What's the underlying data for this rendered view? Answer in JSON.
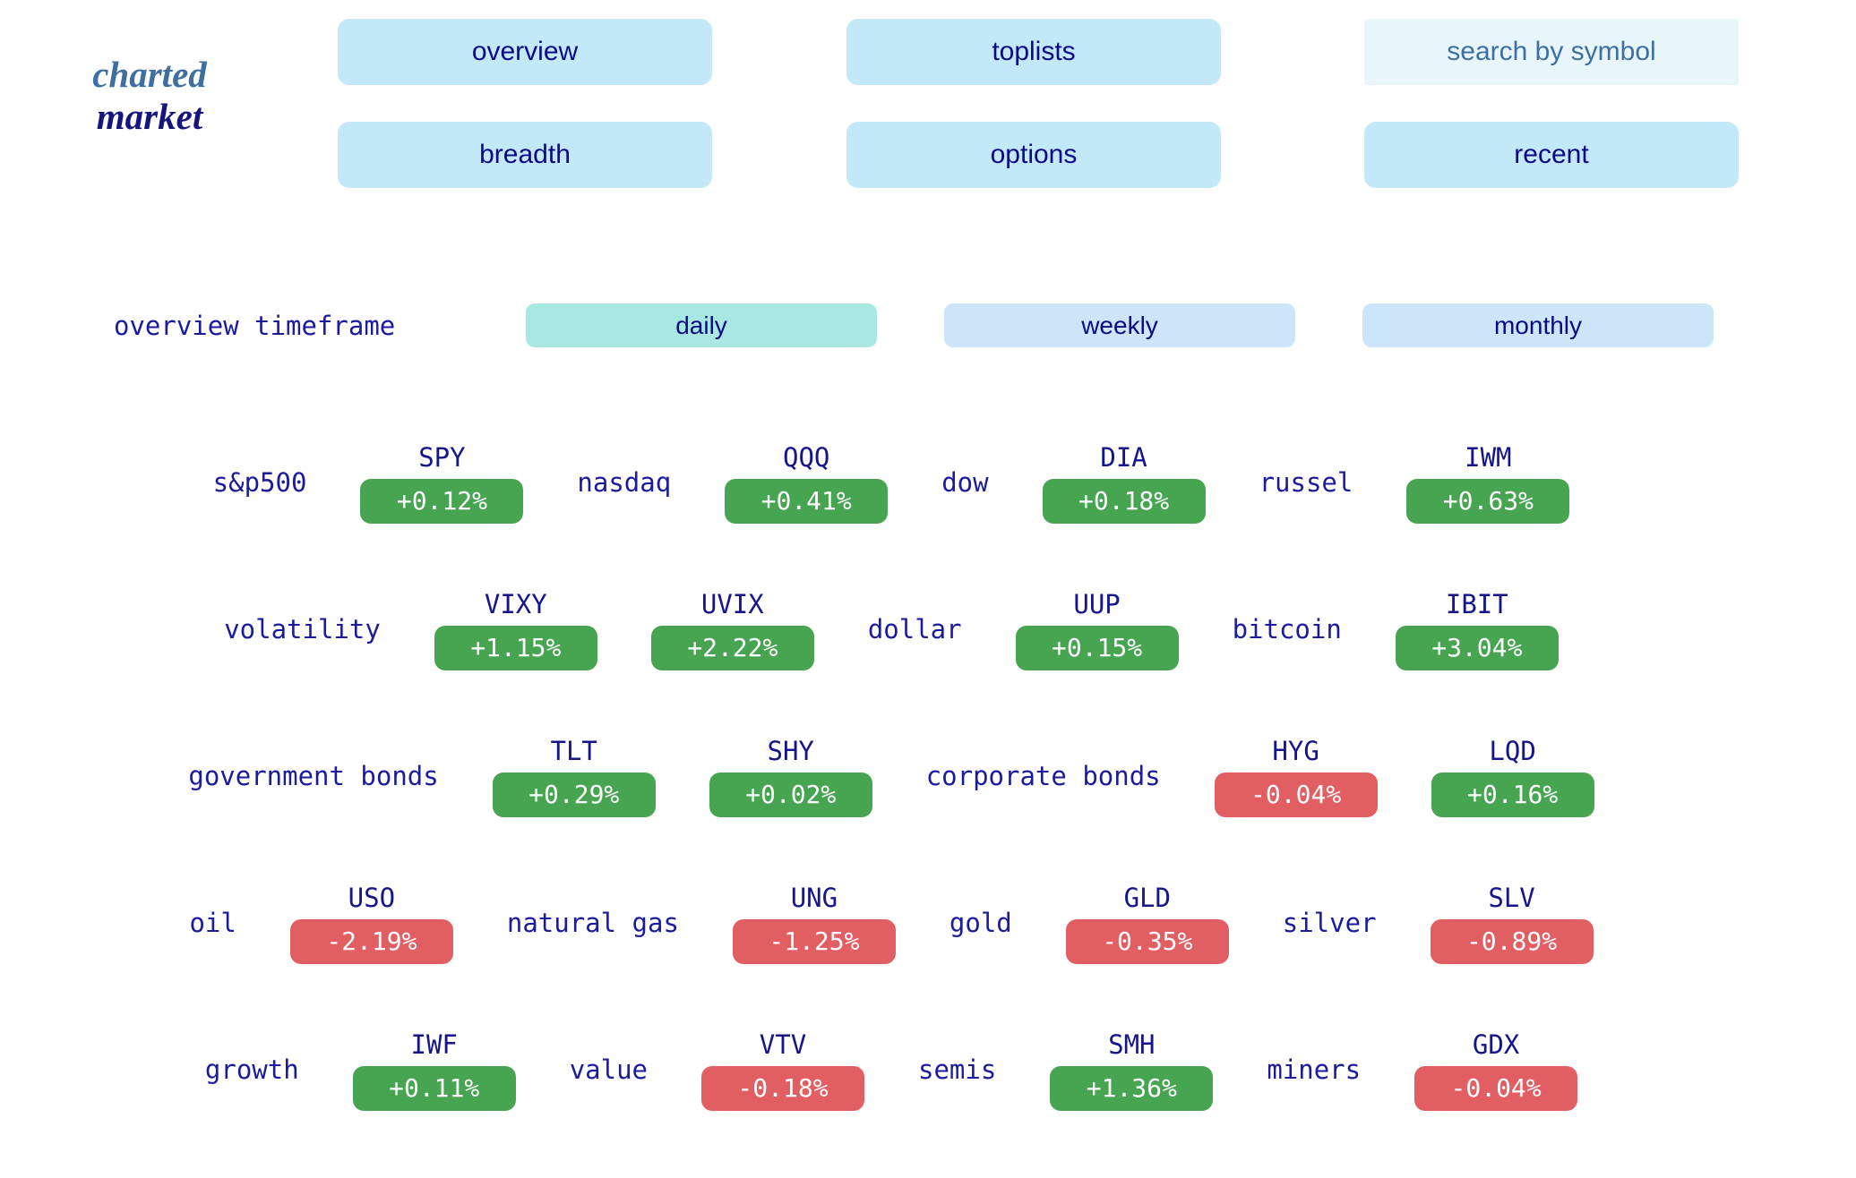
{
  "brand": {
    "line1": "charted",
    "line2": "market"
  },
  "nav": {
    "row1": [
      {
        "label": "overview"
      },
      {
        "label": "toplists"
      }
    ],
    "search": {
      "placeholder": "search by symbol"
    },
    "row2": [
      {
        "label": "breadth"
      },
      {
        "label": "options"
      },
      {
        "label": "recent"
      }
    ]
  },
  "timeframe": {
    "label": "overview timeframe",
    "options": [
      {
        "label": "daily",
        "selected": true
      },
      {
        "label": "weekly",
        "selected": false
      },
      {
        "label": "monthly",
        "selected": false
      }
    ]
  },
  "market": {
    "rows": [
      {
        "items": [
          {
            "type": "label",
            "text": "s&p500"
          },
          {
            "type": "ticker",
            "symbol": "SPY",
            "change": "+0.12%",
            "direction": "up"
          },
          {
            "type": "label",
            "text": "nasdaq"
          },
          {
            "type": "ticker",
            "symbol": "QQQ",
            "change": "+0.41%",
            "direction": "up"
          },
          {
            "type": "label",
            "text": "dow"
          },
          {
            "type": "ticker",
            "symbol": "DIA",
            "change": "+0.18%",
            "direction": "up"
          },
          {
            "type": "label",
            "text": "russel"
          },
          {
            "type": "ticker",
            "symbol": "IWM",
            "change": "+0.63%",
            "direction": "up"
          }
        ]
      },
      {
        "items": [
          {
            "type": "label",
            "text": "volatility"
          },
          {
            "type": "ticker",
            "symbol": "VIXY",
            "change": "+1.15%",
            "direction": "up"
          },
          {
            "type": "ticker",
            "symbol": "UVIX",
            "change": "+2.22%",
            "direction": "up"
          },
          {
            "type": "label",
            "text": "dollar"
          },
          {
            "type": "ticker",
            "symbol": "UUP",
            "change": "+0.15%",
            "direction": "up"
          },
          {
            "type": "label",
            "text": "bitcoin"
          },
          {
            "type": "ticker",
            "symbol": "IBIT",
            "change": "+3.04%",
            "direction": "up"
          }
        ]
      },
      {
        "items": [
          {
            "type": "label",
            "text": "government bonds"
          },
          {
            "type": "ticker",
            "symbol": "TLT",
            "change": "+0.29%",
            "direction": "up"
          },
          {
            "type": "ticker",
            "symbol": "SHY",
            "change": "+0.02%",
            "direction": "up"
          },
          {
            "type": "label",
            "text": "corporate bonds"
          },
          {
            "type": "ticker",
            "symbol": "HYG",
            "change": "-0.04%",
            "direction": "down"
          },
          {
            "type": "ticker",
            "symbol": "LQD",
            "change": "+0.16%",
            "direction": "up"
          }
        ]
      },
      {
        "items": [
          {
            "type": "label",
            "text": "oil"
          },
          {
            "type": "ticker",
            "symbol": "USO",
            "change": "-2.19%",
            "direction": "down"
          },
          {
            "type": "label",
            "text": "natural gas"
          },
          {
            "type": "ticker",
            "symbol": "UNG",
            "change": "-1.25%",
            "direction": "down"
          },
          {
            "type": "label",
            "text": "gold"
          },
          {
            "type": "ticker",
            "symbol": "GLD",
            "change": "-0.35%",
            "direction": "down"
          },
          {
            "type": "label",
            "text": "silver"
          },
          {
            "type": "ticker",
            "symbol": "SLV",
            "change": "-0.89%",
            "direction": "down"
          }
        ]
      },
      {
        "items": [
          {
            "type": "label",
            "text": "growth"
          },
          {
            "type": "ticker",
            "symbol": "IWF",
            "change": "+0.11%",
            "direction": "up"
          },
          {
            "type": "label",
            "text": "value"
          },
          {
            "type": "ticker",
            "symbol": "VTV",
            "change": "-0.18%",
            "direction": "down"
          },
          {
            "type": "label",
            "text": "semis"
          },
          {
            "type": "ticker",
            "symbol": "SMH",
            "change": "+1.36%",
            "direction": "up"
          },
          {
            "type": "label",
            "text": "miners"
          },
          {
            "type": "ticker",
            "symbol": "GDX",
            "change": "-0.04%",
            "direction": "down"
          }
        ]
      }
    ]
  },
  "colors": {
    "positive": "#47a552",
    "negative": "#e15f63",
    "nav_blue": "#c3e8f8",
    "selected_teal": "#a9e8e2",
    "timeframe_blue": "#cde5f8",
    "navy_text": "#0a0a86",
    "label_blue": "#1b1b9e",
    "search_bg": "#e8f6fc",
    "search_text": "#3e6fa3",
    "brand_charted": "#3f6f9e",
    "brand_market": "#15157d"
  }
}
